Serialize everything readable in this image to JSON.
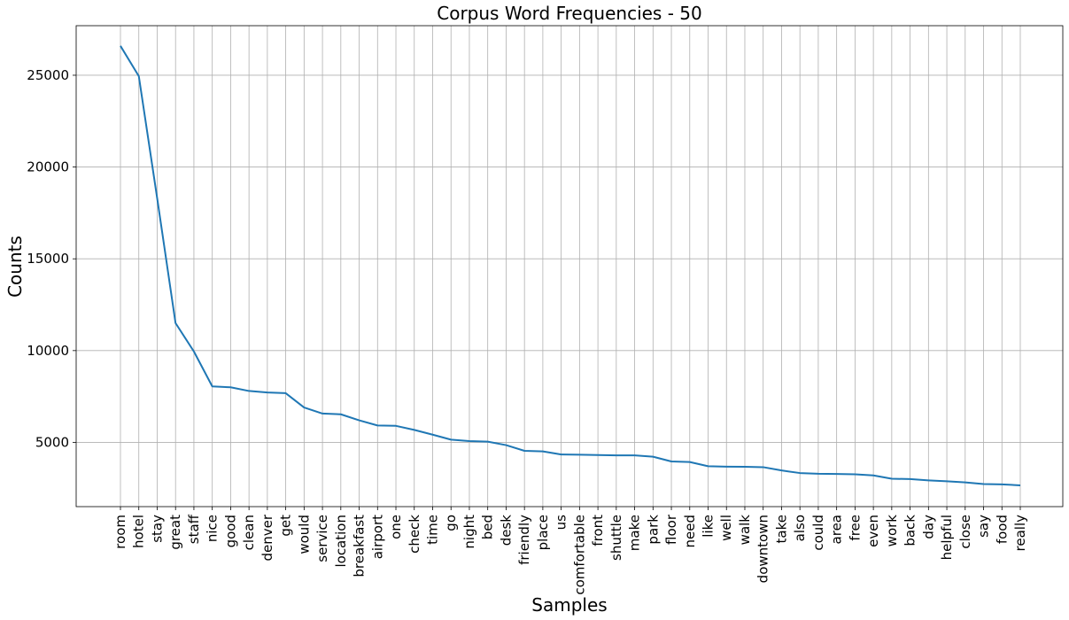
{
  "chart_data": {
    "type": "line",
    "title": "Corpus Word Frequencies - 50",
    "xlabel": "Samples",
    "ylabel": "Counts",
    "ylim": [
      1500,
      27700
    ],
    "yticks": [
      5000,
      10000,
      15000,
      20000,
      25000
    ],
    "grid": true,
    "line_color": "#1f77b4",
    "categories": [
      "room",
      "hotel",
      "stay",
      "great",
      "staff",
      "nice",
      "good",
      "clean",
      "denver",
      "get",
      "would",
      "service",
      "location",
      "breakfast",
      "airport",
      "one",
      "check",
      "time",
      "go",
      "night",
      "bed",
      "desk",
      "friendly",
      "place",
      "us",
      "comfortable",
      "front",
      "shuttle",
      "make",
      "park",
      "floor",
      "need",
      "like",
      "well",
      "walk",
      "downtown",
      "take",
      "also",
      "could",
      "area",
      "free",
      "even",
      "work",
      "back",
      "day",
      "helpful",
      "close",
      "say",
      "food",
      "really"
    ],
    "values": [
      26600,
      24950,
      18300,
      11500,
      9950,
      8050,
      8000,
      7800,
      7720,
      7680,
      6900,
      6570,
      6530,
      6200,
      5920,
      5900,
      5680,
      5420,
      5150,
      5070,
      5040,
      4850,
      4540,
      4510,
      4340,
      4330,
      4310,
      4290,
      4290,
      4220,
      3960,
      3930,
      3700,
      3680,
      3670,
      3650,
      3470,
      3330,
      3290,
      3280,
      3260,
      3200,
      3020,
      3000,
      2930,
      2880,
      2820,
      2730,
      2710,
      2660
    ]
  }
}
